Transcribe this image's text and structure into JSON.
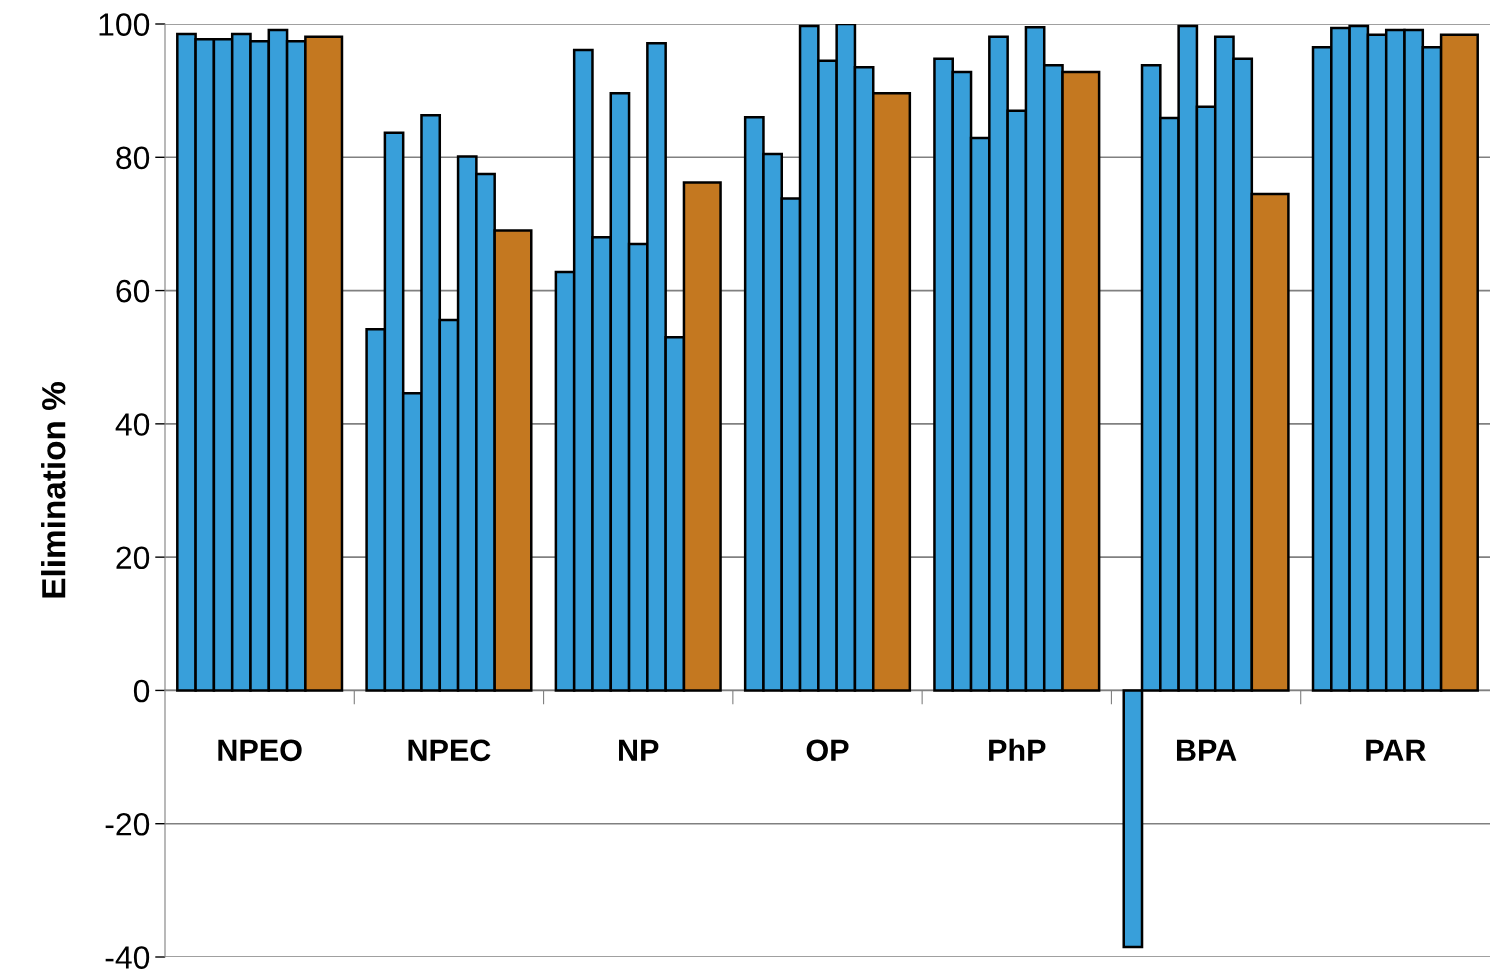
{
  "chart_data": {
    "type": "bar",
    "ylabel": "Elimination %",
    "categories": [
      "NPEO",
      "NPEC",
      "NP",
      "OP",
      "PhP",
      "BPA",
      "PAR"
    ],
    "series": [
      {
        "color": "#389fda",
        "values": [
          98.5,
          54.2,
          62.8,
          86.0,
          94.8,
          -38.5,
          96.5
        ]
      },
      {
        "color": "#389fda",
        "values": [
          97.7,
          83.7,
          96.1,
          80.5,
          92.8,
          93.8,
          99.4
        ]
      },
      {
        "color": "#389fda",
        "values": [
          97.7,
          44.6,
          68.0,
          73.8,
          82.9,
          85.9,
          99.7
        ]
      },
      {
        "color": "#389fda",
        "values": [
          98.5,
          86.3,
          89.6,
          99.7,
          98.1,
          99.7,
          98.4
        ]
      },
      {
        "color": "#389fda",
        "values": [
          97.4,
          55.6,
          67.0,
          94.5,
          87.0,
          87.6,
          99.1
        ]
      },
      {
        "color": "#389fda",
        "values": [
          99.1,
          80.1,
          97.1,
          100.0,
          99.5,
          98.1,
          99.1
        ]
      },
      {
        "color": "#389fda",
        "values": [
          97.4,
          77.5,
          53.0,
          93.5,
          93.8,
          94.8,
          96.5
        ]
      },
      {
        "color": "#c47820",
        "values": [
          98.1,
          69.0,
          76.2,
          89.6,
          92.8,
          74.5,
          98.4
        ]
      }
    ],
    "ylim": [
      -40,
      100
    ],
    "yticks": [
      -40,
      -20,
      0,
      20,
      40,
      60,
      80,
      100
    ],
    "grid": "y",
    "legend": false
  }
}
